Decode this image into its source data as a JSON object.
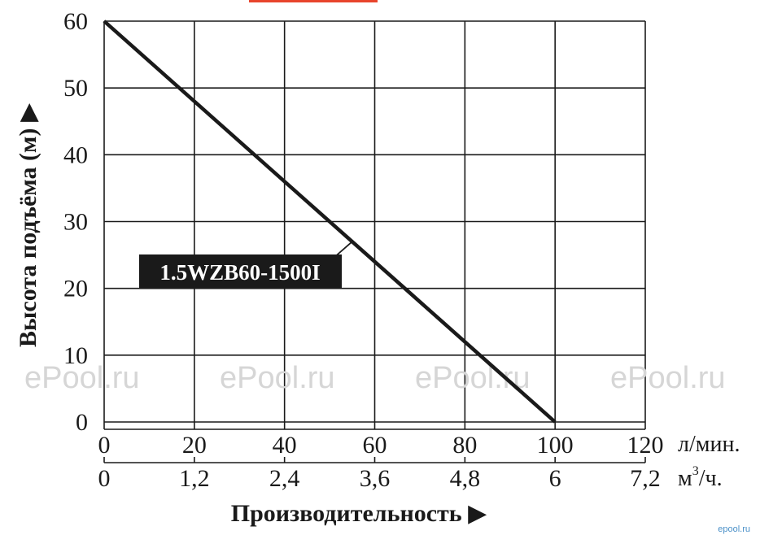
{
  "chart_data": {
    "type": "line",
    "series": [
      {
        "name": "1.5WZB60-1500I",
        "x": [
          0,
          100
        ],
        "y": [
          60,
          0
        ]
      }
    ],
    "xlabel": "Производительность",
    "ylabel": "Высота подъёма (м)",
    "xlim": [
      0,
      120
    ],
    "ylim": [
      0,
      60
    ],
    "x_ticks": [
      "0",
      "20",
      "40",
      "60",
      "80",
      "100",
      "120"
    ],
    "x_unit": "л/мин.",
    "x2_ticks": [
      "0",
      "1,2",
      "2,4",
      "3,6",
      "4,8",
      "6",
      "7,2"
    ],
    "x2_unit_base": "м",
    "x2_unit_sup": "3",
    "x2_unit_rest": "/ч.",
    "y_ticks": [
      "0",
      "10",
      "20",
      "30",
      "40",
      "50",
      "60"
    ],
    "grid": true,
    "colors": {
      "line": "#1a1a1a",
      "label_bg": "#1a1a1a",
      "grid": "#1a1a1a"
    }
  },
  "arrow_glyph": "▶",
  "watermark": {
    "text": "ePool.ru",
    "corner_text": "epool.ru"
  }
}
